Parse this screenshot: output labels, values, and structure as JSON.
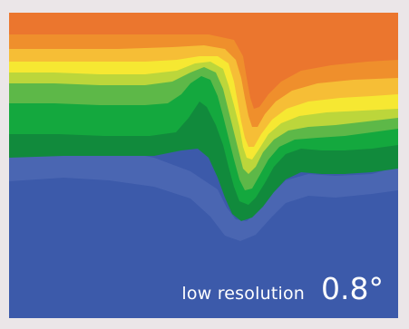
{
  "figure": {
    "caption_label": "low resolution",
    "caption_value": "0.8°",
    "colors": {
      "frame": "#ebe6e8",
      "deep_blue": "#3c5aaa",
      "mid_blue": "#4a62ad",
      "light_blue": "#6f8fc0",
      "teal": "#2f8a78",
      "dark_green": "#0f8a3a",
      "green": "#13a43c",
      "light_green": "#61b845",
      "yellow_green": "#bcd63b",
      "yellow": "#f6e832",
      "light_orange": "#f6bd35",
      "orange": "#ef8e2b",
      "deep_orange": "#eb752d",
      "caption_text": "#ffffff"
    }
  }
}
